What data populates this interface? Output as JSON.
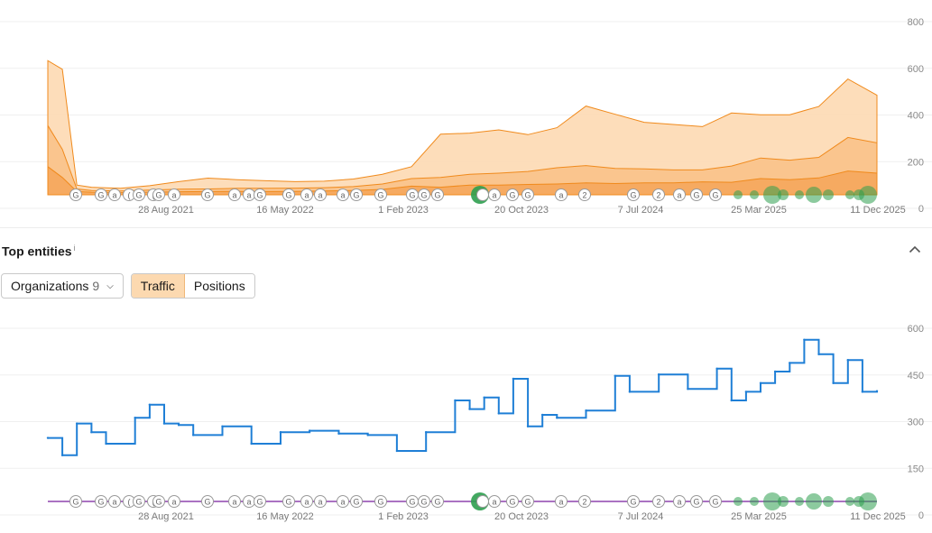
{
  "traffic_chart": {
    "y_ticks": [
      "800",
      "600",
      "400",
      "200",
      "0"
    ],
    "x_ticks": [
      "28 Aug 2021",
      "16 May 2022",
      "1 Feb 2023",
      "20 Oct 2023",
      "7 Jul 2024",
      "25 Mar 2025",
      "11 Dec 2025"
    ]
  },
  "section": {
    "title": "Top entities",
    "info_mark": "i",
    "collapse_icon": "chevron-up-icon"
  },
  "controls": {
    "organizations_label": "Organizations",
    "organizations_count": "9",
    "traffic_label": "Traffic",
    "positions_label": "Positions",
    "active_tab": "Traffic"
  },
  "entity_chart": {
    "y_ticks": [
      "600",
      "450",
      "300",
      "150",
      "0"
    ],
    "x_ticks": [
      "28 Aug 2021",
      "16 May 2022",
      "1 Feb 2023",
      "20 Oct 2023",
      "7 Jul 2024",
      "25 Mar 2025",
      "11 Dec 2025"
    ]
  },
  "colors": {
    "area_light": "#fdd9b3",
    "area_mid": "#f9c28a",
    "area_dark": "#f5a65c",
    "area_line": "#f08a1c",
    "entity_line": "#1f7fd6",
    "marker_line": "#8e44ad",
    "marker_green": "#2e9e4f"
  },
  "chart_data": [
    {
      "type": "area",
      "title": "",
      "xlabel": "",
      "ylabel": "",
      "x_range": [
        "2021-03",
        "2025-12"
      ],
      "ylim": [
        0,
        800
      ],
      "stacked": true,
      "grid": true,
      "x": [
        "2021-03",
        "2021-04",
        "2021-05",
        "2021-06",
        "2021-08",
        "2021-10",
        "2021-12",
        "2022-02",
        "2022-04",
        "2022-06",
        "2022-08",
        "2022-10",
        "2022-12",
        "2023-02",
        "2023-04",
        "2023-06",
        "2023-08",
        "2023-10",
        "2023-12",
        "2024-02",
        "2024-04",
        "2024-06",
        "2024-08",
        "2024-10",
        "2024-12",
        "2025-02",
        "2025-04",
        "2025-06",
        "2025-08",
        "2025-10",
        "2025-12"
      ],
      "series": [
        {
          "values": [
            130,
            80,
            15,
            12,
            10,
            12,
            14,
            15,
            16,
            15,
            16,
            18,
            20,
            25,
            40,
            35,
            45,
            45,
            48,
            50,
            55,
            52,
            55,
            55,
            60,
            58,
            75,
            70,
            78,
            110,
            100
          ]
        },
        {
          "values": [
            190,
            130,
            12,
            8,
            8,
            10,
            12,
            12,
            14,
            15,
            15,
            15,
            18,
            25,
            35,
            45,
            50,
            55,
            60,
            75,
            80,
            70,
            65,
            60,
            55,
            75,
            95,
            90,
            95,
            155,
            140
          ]
        },
        {
          "values": [
            300,
            370,
            18,
            15,
            12,
            20,
            35,
            50,
            40,
            35,
            30,
            30,
            35,
            45,
            55,
            200,
            190,
            200,
            170,
            185,
            275,
            250,
            215,
            210,
            200,
            245,
            200,
            210,
            235,
            270,
            220
          ]
        }
      ],
      "cumulative": [
        620,
        580,
        45,
        35,
        30,
        42,
        61,
        77,
        70,
        65,
        61,
        63,
        73,
        95,
        130,
        280,
        285,
        300,
        278,
        310,
        410,
        372,
        335,
        325,
        315,
        378,
        370,
        370,
        408,
        535,
        460
      ]
    },
    {
      "type": "line",
      "title": "",
      "xlabel": "",
      "ylabel": "",
      "x_range": [
        "2021-03",
        "2025-12"
      ],
      "ylim": [
        0,
        600
      ],
      "grid": true,
      "x": [
        "2021-03",
        "2021-04",
        "2021-05",
        "2021-06",
        "2021-07",
        "2021-09",
        "2021-10",
        "2021-11",
        "2021-12",
        "2022-01",
        "2022-03",
        "2022-05",
        "2022-07",
        "2022-09",
        "2022-11",
        "2023-01",
        "2023-03",
        "2023-05",
        "2023-07",
        "2023-08",
        "2023-09",
        "2023-10",
        "2023-11",
        "2023-12",
        "2024-01",
        "2024-02",
        "2024-04",
        "2024-06",
        "2024-07",
        "2024-09",
        "2024-11",
        "2025-01",
        "2025-02",
        "2025-03",
        "2025-04",
        "2025-05",
        "2025-06",
        "2025-07",
        "2025-08",
        "2025-09",
        "2025-10",
        "2025-11",
        "2025-12"
      ],
      "values": [
        220,
        160,
        270,
        240,
        200,
        290,
        335,
        270,
        265,
        230,
        260,
        200,
        240,
        245,
        235,
        230,
        175,
        240,
        350,
        320,
        360,
        305,
        425,
        260,
        300,
        290,
        315,
        435,
        380,
        440,
        390,
        460,
        350,
        380,
        410,
        450,
        480,
        560,
        510,
        410,
        490,
        380,
        382
      ]
    }
  ]
}
